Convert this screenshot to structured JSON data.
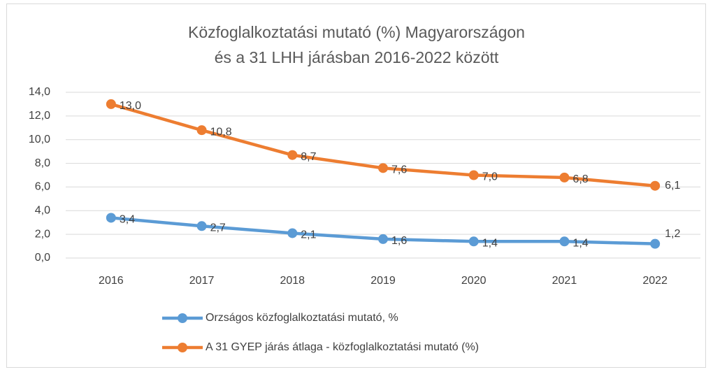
{
  "chart_data": {
    "type": "line",
    "title": "Közfoglalkoztatási mutató (%) Magyarországon és a 31 LHH járásban 2016-2022 között",
    "categories": [
      "2016",
      "2017",
      "2018",
      "2019",
      "2020",
      "2021",
      "2022"
    ],
    "series": [
      {
        "name": "Orzságos közfoglalkoztatási mutató, %",
        "color": "#5b9bd5",
        "values": [
          3.4,
          2.7,
          2.1,
          1.6,
          1.4,
          1.4,
          1.2
        ],
        "value_labels": [
          "3,4",
          "2,7",
          "2,1",
          "1,6",
          "1,4",
          "1,4",
          "1,2"
        ]
      },
      {
        "name": "A 31 GYEP járás átlaga - közfoglalkoztatási mutató (%)",
        "color": "#ed7d31",
        "values": [
          13.0,
          10.8,
          8.7,
          7.6,
          7.0,
          6.8,
          6.1
        ],
        "value_labels": [
          "13,0",
          "10,8",
          "8,7",
          "7,6",
          "7,0",
          "6,8",
          "6,1"
        ]
      }
    ],
    "ylim": [
      0,
      14
    ],
    "yticks": [
      {
        "value": 0,
        "label": "0,0"
      },
      {
        "value": 2,
        "label": "2,0"
      },
      {
        "value": 4,
        "label": "4,0"
      },
      {
        "value": 6,
        "label": "6,0"
      },
      {
        "value": 8,
        "label": "8,0"
      },
      {
        "value": 10,
        "label": "10,0"
      },
      {
        "value": 12,
        "label": "12,0"
      },
      {
        "value": 14,
        "label": "14,0"
      }
    ],
    "grid": true
  }
}
